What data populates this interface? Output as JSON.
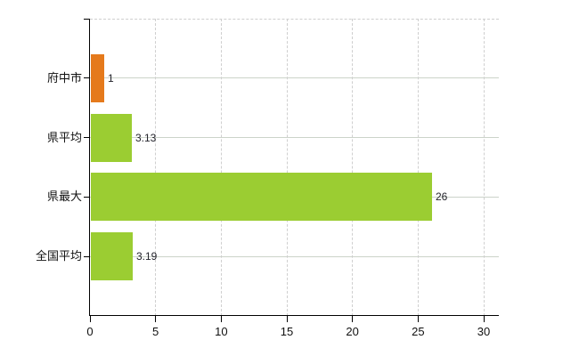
{
  "chart_data": {
    "type": "bar",
    "orientation": "horizontal",
    "title": "",
    "categories": [
      "府中市",
      "県平均",
      "県最大",
      "全国平均"
    ],
    "values": [
      1,
      3.13,
      26,
      3.19
    ],
    "value_labels": [
      "1",
      "3.13",
      "26",
      "3.19"
    ],
    "bar_colors": [
      "#e57a1c",
      "#9bcd32",
      "#9bcd32",
      "#9bcd32"
    ],
    "x_tick_values": [
      0,
      5,
      10,
      15,
      20,
      25,
      30
    ],
    "x_tick_labels": [
      "0",
      "5",
      "10",
      "15",
      "20",
      "25",
      "30"
    ],
    "xlim": [
      0,
      31.2
    ],
    "xlabel": "",
    "ylabel": "",
    "grid": "vertical dashed at ticks, horizontal solid at category centers, dashed top border",
    "legend_position": "none",
    "colors": {
      "axis": "#000000",
      "vertical_grid": "#cfcfcf",
      "horizontal_grid": "#ccd3c9",
      "text": "#111111",
      "value_text": "#24242c",
      "background": "#ffffff"
    }
  }
}
